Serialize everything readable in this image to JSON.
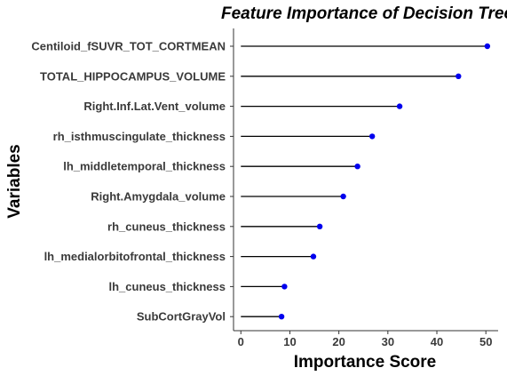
{
  "chart_data": {
    "type": "lollipop",
    "title": "Feature Importance of Decision Tree",
    "xlabel": "Importance Score",
    "ylabel": "Variables",
    "xlim": [
      -1.5,
      52.5
    ],
    "xticks": [
      0,
      10,
      20,
      30,
      40,
      50
    ],
    "grid": false,
    "categories": [
      "Centiloid_fSUVR_TOT_CORTMEAN",
      "TOTAL_HIPPOCAMPUS_VOLUME",
      "Right.Inf.Lat.Vent_volume",
      "rh_isthmuscingulate_thickness",
      "lh_middletemporal_thickness",
      "Right.Amygdala_volume",
      "rh_cuneus_thickness",
      "lh_medialorbitofrontal_thickness",
      "lh_cuneus_thickness",
      "SubCortGrayVol"
    ],
    "values": [
      50.3,
      44.4,
      32.4,
      26.8,
      23.8,
      20.9,
      16.1,
      14.8,
      8.9,
      8.3
    ],
    "colors": {
      "point": "#0000ee",
      "segment": "#000000",
      "axis": "#333333",
      "text": "#3a3a3a"
    }
  }
}
